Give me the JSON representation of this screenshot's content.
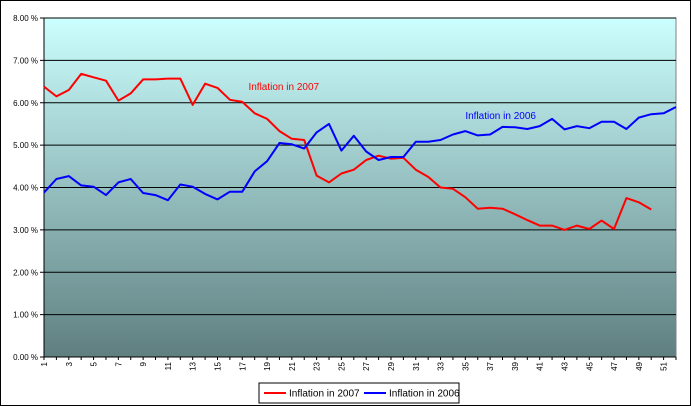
{
  "chart_data": {
    "type": "line",
    "title": "",
    "xlabel": "",
    "ylabel": "",
    "ylim": [
      0,
      8
    ],
    "y_ticks": [
      0,
      1,
      2,
      3,
      4,
      5,
      6,
      7,
      8
    ],
    "y_tick_labels": [
      "0.00 %",
      "1.00 %",
      "2.00 %",
      "3.00 %",
      "4.00 %",
      "5.00 %",
      "6.00 %",
      "7.00 %",
      "8.00 %"
    ],
    "x_tick_labels": [
      "1",
      "3",
      "5",
      "7",
      "9",
      "11",
      "13",
      "15",
      "17",
      "19",
      "21",
      "23",
      "25",
      "27",
      "29",
      "31",
      "33",
      "35",
      "37",
      "39",
      "41",
      "43",
      "45",
      "47",
      "49",
      "51"
    ],
    "x_range": [
      1,
      52
    ],
    "grid": "horizontal",
    "legend_position": "bottom",
    "background_gradient": [
      "#ccffff",
      "#5f7f80"
    ],
    "series": [
      {
        "name": "Inflation in 2007",
        "color": "#ff0000",
        "x": [
          1,
          2,
          3,
          4,
          5,
          6,
          7,
          8,
          9,
          10,
          11,
          12,
          13,
          14,
          15,
          16,
          17,
          18,
          19,
          20,
          21,
          22,
          23,
          24,
          25,
          26,
          27,
          28,
          29,
          30,
          31,
          32,
          33,
          34,
          35,
          36,
          37,
          38,
          39,
          40,
          41,
          42,
          43,
          44,
          45,
          46,
          47,
          48,
          49,
          50
        ],
        "values": [
          6.38,
          6.15,
          6.3,
          6.68,
          6.6,
          6.52,
          6.05,
          6.22,
          6.55,
          6.55,
          6.57,
          6.57,
          5.95,
          6.45,
          6.35,
          6.07,
          6.02,
          5.75,
          5.62,
          5.33,
          5.15,
          5.12,
          4.28,
          4.12,
          4.33,
          4.42,
          4.65,
          4.75,
          4.68,
          4.7,
          4.42,
          4.25,
          4.0,
          3.97,
          3.77,
          3.5,
          3.52,
          3.5,
          3.37,
          3.23,
          3.1,
          3.1,
          3.0,
          3.1,
          3.02,
          3.22,
          3.02,
          3.75,
          3.65,
          3.48
        ]
      },
      {
        "name": "Inflation in 2006",
        "color": "#0000ff",
        "x": [
          1,
          2,
          3,
          4,
          5,
          6,
          7,
          8,
          9,
          10,
          11,
          12,
          13,
          14,
          15,
          16,
          17,
          18,
          19,
          20,
          21,
          22,
          23,
          24,
          25,
          26,
          27,
          28,
          29,
          30,
          31,
          32,
          33,
          34,
          35,
          36,
          37,
          38,
          39,
          40,
          41,
          42,
          43,
          44,
          45,
          46,
          47,
          48,
          49,
          50,
          51,
          52
        ],
        "values": [
          3.88,
          4.2,
          4.27,
          4.05,
          4.02,
          3.82,
          4.12,
          4.2,
          3.87,
          3.82,
          3.7,
          4.07,
          4.02,
          3.85,
          3.72,
          3.9,
          3.9,
          4.38,
          4.62,
          5.05,
          5.02,
          4.92,
          5.3,
          5.5,
          4.87,
          5.22,
          4.85,
          4.65,
          4.72,
          4.72,
          5.08,
          5.08,
          5.12,
          5.25,
          5.33,
          5.23,
          5.25,
          5.43,
          5.42,
          5.38,
          5.45,
          5.62,
          5.37,
          5.45,
          5.4,
          5.55,
          5.55,
          5.38,
          5.65,
          5.73,
          5.75,
          5.9
        ]
      }
    ],
    "annotations": [
      {
        "text": "Inflation in 2007",
        "x": 17.5,
        "y": 6.3,
        "series": 0
      },
      {
        "text": "Inflation in 2006",
        "x": 35,
        "y": 5.62,
        "series": 1
      }
    ]
  }
}
